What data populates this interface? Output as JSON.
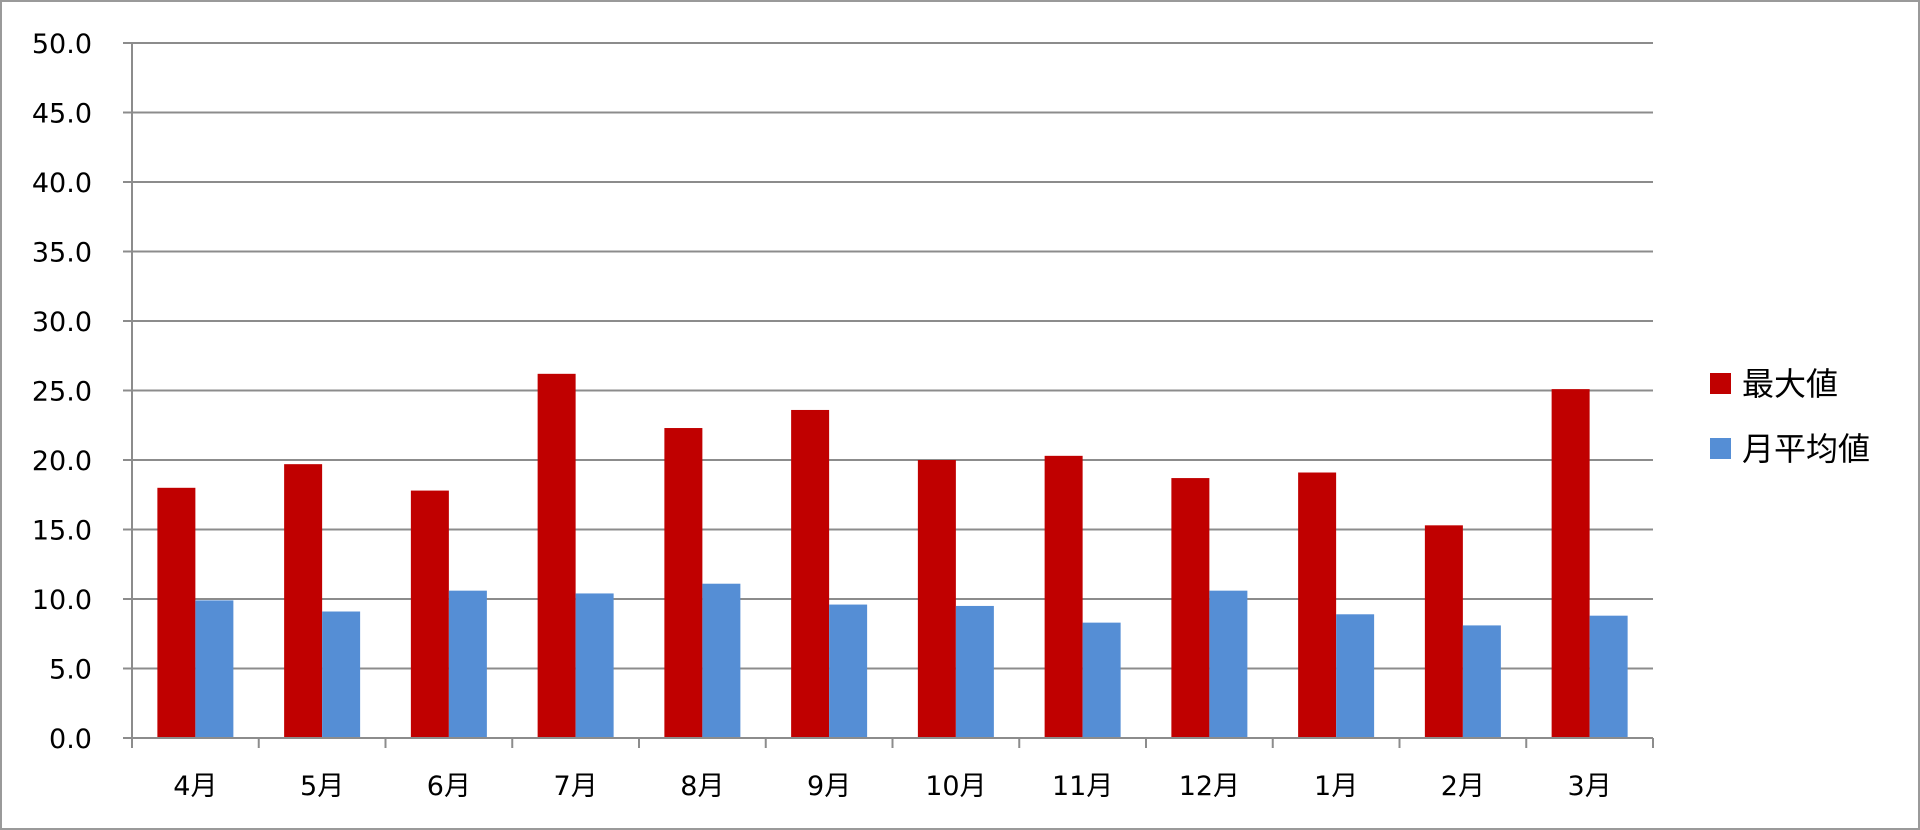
{
  "chart_data": {
    "type": "bar",
    "title": "",
    "xlabel": "",
    "ylabel": "",
    "categories": [
      "4月",
      "5月",
      "6月",
      "7月",
      "8月",
      "9月",
      "10月",
      "11月",
      "12月",
      "1月",
      "2月",
      "3月"
    ],
    "series": [
      {
        "name": "最大値",
        "color": "#c00000",
        "values": [
          18.0,
          19.7,
          17.8,
          26.2,
          22.3,
          23.6,
          20.0,
          20.3,
          18.7,
          19.1,
          15.3,
          25.1
        ]
      },
      {
        "name": "月平均値",
        "color": "#558ed5",
        "values": [
          9.9,
          9.1,
          10.6,
          10.4,
          11.1,
          9.6,
          9.5,
          8.3,
          10.6,
          8.9,
          8.1,
          8.8
        ]
      }
    ],
    "ylim": [
      0,
      50
    ],
    "yticks": [
      "0.0",
      "5.0",
      "10.0",
      "15.0",
      "20.0",
      "25.0",
      "30.0",
      "35.0",
      "40.0",
      "45.0",
      "50.0"
    ],
    "grid": true,
    "legend_position": "right"
  }
}
